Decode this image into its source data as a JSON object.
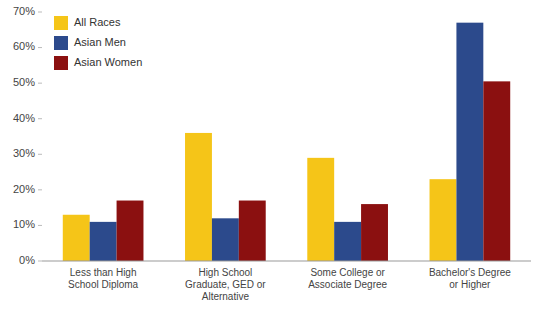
{
  "chart_data": {
    "type": "bar",
    "categories": [
      "Less than High\nSchool Diploma",
      "High School\nGraduate, GED or\nAlternative",
      "Some College or\nAssociate Degree",
      "Bachelor's Degree\nor Higher"
    ],
    "series": [
      {
        "name": "All Races",
        "color": "#F5C518",
        "values": [
          0.13,
          0.36,
          0.29,
          0.23
        ]
      },
      {
        "name": "Asian Men",
        "color": "#2C4A8C",
        "values": [
          0.11,
          0.12,
          0.11,
          0.67
        ]
      },
      {
        "name": "Asian Women",
        "color": "#8B1010",
        "values": [
          0.17,
          0.17,
          0.16,
          0.505
        ]
      }
    ],
    "ylim": [
      0,
      0.7
    ],
    "yticks": [
      {
        "value": 0,
        "label": "0%"
      },
      {
        "value": 0.1,
        "label": "10%"
      },
      {
        "value": 0.2,
        "label": "20%"
      },
      {
        "value": 0.3,
        "label": "30%"
      },
      {
        "value": 0.4,
        "label": "40%"
      },
      {
        "value": 0.5,
        "label": "50%"
      },
      {
        "value": 0.6,
        "label": "60%"
      },
      {
        "value": 0.7,
        "label": "70%"
      }
    ],
    "grid": false,
    "legend": "upper-left"
  }
}
